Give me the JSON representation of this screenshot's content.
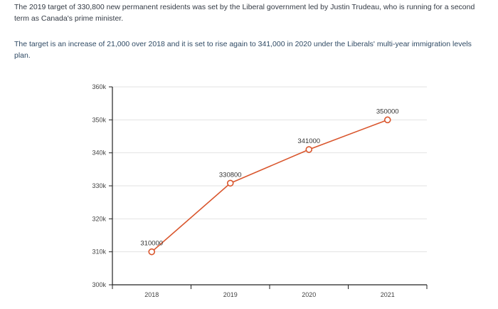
{
  "article": {
    "paragraph1": "The 2019 target of 330,800 new permanent residents was set by the Liberal government led by Justin Trudeau, who is running for a second term as Canada's prime minister.",
    "paragraph2": "The target is an increase of 21,000 over 2018 and it is set to rise again to 341,000 in 2020 under the Liberals' multi-year immigration levels plan."
  },
  "chart_data": {
    "type": "line",
    "categories": [
      "2018",
      "2019",
      "2020",
      "2021"
    ],
    "values": [
      310000,
      330800,
      341000,
      350000
    ],
    "data_labels": [
      "310000",
      "330800",
      "341000",
      "350000"
    ],
    "ylim": [
      300000,
      360000
    ],
    "yticks": [
      300000,
      310000,
      320000,
      330000,
      340000,
      350000,
      360000
    ],
    "ytick_labels": [
      "300k",
      "310k",
      "320k",
      "330k",
      "340k",
      "350k",
      "360k"
    ],
    "title": "",
    "xlabel": "",
    "ylabel": "",
    "grid": true,
    "line_color": "#d9552c"
  }
}
